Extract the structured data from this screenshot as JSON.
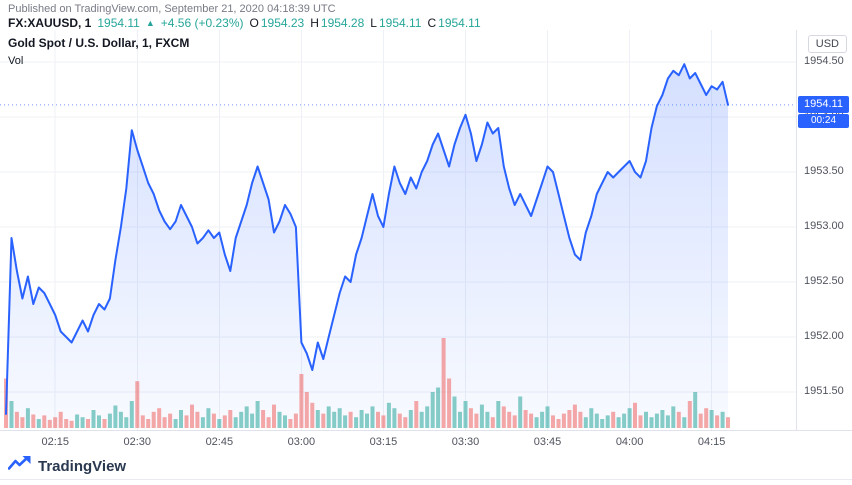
{
  "published": "Published on TradingView.com, September 21, 2020 04:18:39 UTC",
  "statusline": {
    "symbol": "FX:XAUUSD, 1",
    "last": "1954.11",
    "arrow": "▲",
    "change": "+4.56 (+0.23%)",
    "o_label": "O",
    "o": "1954.23",
    "h_label": "H",
    "h": "1954.28",
    "l_label": "L",
    "l": "1954.11",
    "c_label": "C",
    "c": "1954.11"
  },
  "legend": {
    "title": "Gold Spot / U.S. Dollar, 1, FXCM",
    "vol": "Vol"
  },
  "axis": {
    "currency": "USD"
  },
  "badges": {
    "last_price": "1954.11",
    "countdown": "00:24"
  },
  "footer": {
    "brand": "TradingView"
  },
  "colors": {
    "accent": "#2962ff",
    "up": "#26a69a",
    "down": "#ef5350",
    "volume_up": "rgba(38,166,154,0.55)",
    "volume_down": "rgba(239,83,80,0.5)",
    "grid": "#edf0f6",
    "axis_text": "#50535e",
    "badge_bg": "#2962ff",
    "area_top": "rgba(41,98,255,0.20)",
    "area_bottom": "rgba(41,98,255,0.03)"
  },
  "chart_data": {
    "type": "area",
    "title": "Gold Spot / U.S. Dollar, 1, FXCM",
    "symbol": "FX:XAUUSD",
    "interval": "1 minute",
    "time_range": [
      "02:06",
      "04:18"
    ],
    "ylim": [
      1951.2,
      1954.6
    ],
    "last": 1954.11,
    "y_ticks": [
      1951.5,
      1952.0,
      1952.5,
      1953.0,
      1953.5,
      1954.0,
      1954.5
    ],
    "x_tick_labels": [
      "02:15",
      "02:30",
      "02:45",
      "03:00",
      "03:15",
      "03:30",
      "03:45",
      "04:00",
      "04:15"
    ],
    "x_tick_indices": [
      9,
      24,
      39,
      54,
      69,
      84,
      99,
      114,
      129
    ],
    "prices": [
      1951.3,
      1952.9,
      1952.6,
      1952.35,
      1952.55,
      1952.3,
      1952.45,
      1952.4,
      1952.3,
      1952.2,
      1952.05,
      1952.0,
      1951.95,
      1952.05,
      1952.15,
      1952.05,
      1952.2,
      1952.3,
      1952.25,
      1952.35,
      1952.7,
      1953.0,
      1953.35,
      1953.88,
      1953.7,
      1953.55,
      1953.4,
      1953.3,
      1953.15,
      1953.05,
      1952.98,
      1953.05,
      1953.2,
      1953.1,
      1953.0,
      1952.85,
      1952.9,
      1952.97,
      1952.9,
      1952.95,
      1952.75,
      1952.6,
      1952.9,
      1953.05,
      1953.2,
      1953.4,
      1953.55,
      1953.4,
      1953.25,
      1952.95,
      1953.05,
      1953.2,
      1953.12,
      1953.0,
      1951.95,
      1951.85,
      1951.7,
      1951.95,
      1951.8,
      1952.0,
      1952.2,
      1952.4,
      1952.55,
      1952.5,
      1952.75,
      1952.9,
      1953.1,
      1953.3,
      1953.1,
      1953.0,
      1953.3,
      1953.55,
      1953.4,
      1953.3,
      1953.45,
      1953.35,
      1953.5,
      1953.6,
      1953.75,
      1953.85,
      1953.7,
      1953.55,
      1953.75,
      1953.9,
      1954.02,
      1953.85,
      1953.6,
      1953.75,
      1953.95,
      1953.85,
      1953.9,
      1953.55,
      1953.35,
      1953.2,
      1953.3,
      1953.2,
      1953.1,
      1953.25,
      1953.4,
      1953.55,
      1953.5,
      1953.3,
      1953.1,
      1952.9,
      1952.75,
      1952.7,
      1952.95,
      1953.1,
      1953.3,
      1953.4,
      1953.5,
      1953.45,
      1953.5,
      1953.55,
      1953.6,
      1953.5,
      1953.45,
      1953.6,
      1953.9,
      1954.1,
      1954.2,
      1954.35,
      1954.42,
      1954.38,
      1954.48,
      1954.35,
      1954.4,
      1954.3,
      1954.2,
      1954.28,
      1954.25,
      1954.32,
      1954.11
    ],
    "volume": [
      55,
      30,
      18,
      12,
      22,
      15,
      10,
      14,
      9,
      12,
      18,
      10,
      8,
      15,
      12,
      10,
      20,
      14,
      10,
      16,
      25,
      18,
      12,
      30,
      52,
      14,
      10,
      18,
      22,
      12,
      16,
      10,
      20,
      14,
      26,
      18,
      12,
      22,
      16,
      10,
      14,
      20,
      12,
      18,
      24,
      16,
      30,
      20,
      12,
      26,
      18,
      14,
      10,
      16,
      60,
      40,
      28,
      20,
      16,
      24,
      18,
      22,
      14,
      18,
      12,
      20,
      16,
      24,
      18,
      14,
      28,
      22,
      16,
      12,
      20,
      30,
      18,
      24,
      40,
      45,
      100,
      55,
      35,
      18,
      30,
      22,
      16,
      26,
      18,
      12,
      30,
      24,
      18,
      14,
      35,
      20,
      16,
      12,
      18,
      24,
      14,
      10,
      16,
      20,
      26,
      18,
      12,
      22,
      16,
      10,
      14,
      18,
      12,
      16,
      22,
      28,
      14,
      18,
      12,
      16,
      20,
      14,
      24,
      18,
      12,
      30,
      40,
      16,
      22,
      20,
      14,
      18,
      12
    ]
  }
}
